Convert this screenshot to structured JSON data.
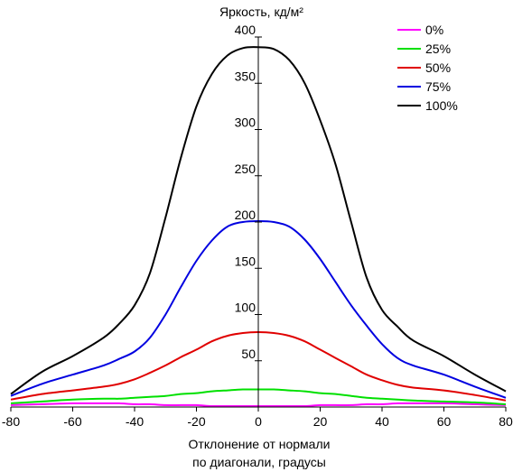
{
  "chart_data": {
    "type": "line",
    "title": "",
    "ylabel": "Яркость, кд/м²",
    "xlabel_lines": [
      "Отклонение от нормали",
      "по диагонали, градусы"
    ],
    "xlim": [
      -80,
      80
    ],
    "ylim": [
      0,
      400
    ],
    "x_ticks": [
      -80,
      -60,
      -40,
      -20,
      0,
      20,
      40,
      60,
      80
    ],
    "y_ticks": [
      50,
      100,
      150,
      200,
      250,
      300,
      350,
      400
    ],
    "grid": false,
    "legend_position": "top-right",
    "x": [
      -80,
      -70,
      -60,
      -50,
      -45,
      -40,
      -35,
      -30,
      -25,
      -20,
      -15,
      -10,
      -5,
      0,
      5,
      10,
      15,
      20,
      25,
      30,
      35,
      40,
      45,
      50,
      60,
      70,
      80
    ],
    "series": [
      {
        "name": "0%",
        "color": "#ff00ff",
        "values": [
          2,
          3,
          4,
          4,
          4,
          3,
          3,
          2,
          2,
          2,
          1,
          1,
          1,
          1,
          1,
          1,
          1,
          2,
          2,
          2,
          3,
          3,
          4,
          4,
          4,
          3,
          2
        ]
      },
      {
        "name": "25%",
        "color": "#00e000",
        "values": [
          4,
          6,
          8,
          9,
          9,
          10,
          11,
          12,
          14,
          15,
          17,
          18,
          19,
          19,
          19,
          18,
          17,
          15,
          14,
          12,
          10,
          9,
          8,
          7,
          6,
          5,
          3
        ]
      },
      {
        "name": "50%",
        "color": "#e00000",
        "values": [
          8,
          14,
          18,
          22,
          25,
          30,
          37,
          45,
          54,
          62,
          71,
          77,
          80,
          81,
          80,
          77,
          71,
          62,
          53,
          44,
          35,
          29,
          24,
          21,
          18,
          13,
          7
        ]
      },
      {
        "name": "75%",
        "color": "#0000e0",
        "values": [
          12,
          25,
          35,
          45,
          52,
          60,
          75,
          100,
          130,
          158,
          180,
          195,
          200,
          201,
          200,
          195,
          181,
          160,
          135,
          110,
          88,
          68,
          53,
          45,
          35,
          22,
          10
        ]
      },
      {
        "name": "100%",
        "color": "#000000",
        "values": [
          14,
          38,
          55,
          75,
          90,
          110,
          145,
          205,
          270,
          325,
          360,
          380,
          388,
          389,
          387,
          375,
          350,
          310,
          262,
          200,
          140,
          105,
          87,
          72,
          55,
          35,
          17
        ]
      }
    ]
  }
}
